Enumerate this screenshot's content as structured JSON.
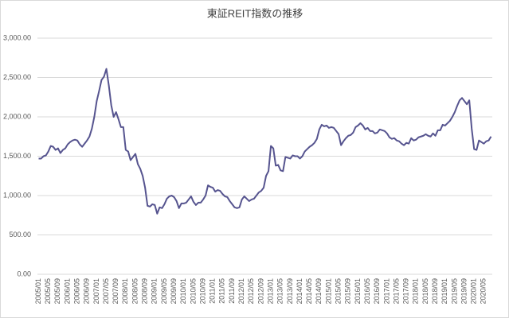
{
  "chart_data": {
    "type": "line",
    "title": "東証REIT指数の推移",
    "categories": [
      "2005/01",
      null,
      null,
      null,
      "2005/05",
      null,
      null,
      null,
      "2005/09",
      null,
      null,
      null,
      "2006/01",
      null,
      null,
      null,
      "2006/05",
      null,
      null,
      null,
      "2006/09",
      null,
      null,
      null,
      "2007/01",
      null,
      null,
      null,
      "2007/05",
      null,
      null,
      null,
      "2007/09",
      null,
      null,
      null,
      "2008/01",
      null,
      null,
      null,
      "2008/05",
      null,
      null,
      null,
      "2008/09",
      null,
      null,
      null,
      "2009/01",
      null,
      null,
      null,
      "2009/05",
      null,
      null,
      null,
      "2009/09",
      null,
      null,
      null,
      "2010/01",
      null,
      null,
      null,
      "2010/05",
      null,
      null,
      null,
      "2010/09",
      null,
      null,
      null,
      "2011/01",
      null,
      null,
      null,
      "2011/05",
      null,
      null,
      null,
      "2011/09",
      null,
      null,
      null,
      "2012/01",
      null,
      null,
      null,
      "2012/05",
      null,
      null,
      null,
      "2012/09",
      null,
      null,
      null,
      "2013/01",
      null,
      null,
      null,
      "2013/05",
      null,
      null,
      null,
      "2013/09",
      null,
      null,
      null,
      "2014/01",
      null,
      null,
      null,
      "2014/05",
      null,
      null,
      null,
      "2014/09",
      null,
      null,
      null,
      "2015/01",
      null,
      null,
      null,
      "2015/05",
      null,
      null,
      null,
      "2015/09",
      null,
      null,
      null,
      "2016/01",
      null,
      null,
      null,
      "2016/05",
      null,
      null,
      null,
      "2016/09",
      null,
      null,
      null,
      "2017/01",
      null,
      null,
      null,
      "2017/05",
      null,
      null,
      null,
      "2017/09",
      null,
      null,
      null,
      "2018/01",
      null,
      null,
      null,
      "2018/05",
      null,
      null,
      null,
      "2018/09",
      null,
      null,
      null,
      "2019/01",
      null,
      null,
      null,
      "2019/05",
      null,
      null,
      null,
      "2019/09",
      null,
      null,
      null,
      "2020/01",
      null,
      null,
      null,
      "2020/05",
      null,
      null,
      null
    ],
    "values": [
      1470,
      1470,
      1500,
      1510,
      1560,
      1630,
      1620,
      1580,
      1600,
      1540,
      1580,
      1600,
      1650,
      1680,
      1700,
      1710,
      1700,
      1650,
      1620,
      1660,
      1700,
      1750,
      1850,
      2000,
      2200,
      2330,
      2470,
      2510,
      2610,
      2400,
      2150,
      2000,
      2060,
      1970,
      1870,
      1870,
      1580,
      1560,
      1450,
      1490,
      1530,
      1400,
      1340,
      1250,
      1100,
      870,
      860,
      890,
      880,
      770,
      850,
      840,
      890,
      960,
      990,
      1000,
      980,
      930,
      840,
      900,
      900,
      910,
      950,
      990,
      920,
      880,
      910,
      910,
      950,
      1000,
      1130,
      1110,
      1100,
      1050,
      1070,
      1060,
      1020,
      990,
      980,
      930,
      890,
      850,
      840,
      850,
      950,
      990,
      960,
      930,
      950,
      960,
      1000,
      1040,
      1060,
      1100,
      1250,
      1310,
      1630,
      1600,
      1380,
      1390,
      1320,
      1310,
      1490,
      1480,
      1470,
      1510,
      1500,
      1500,
      1470,
      1500,
      1560,
      1590,
      1620,
      1640,
      1670,
      1720,
      1840,
      1900,
      1880,
      1890,
      1860,
      1870,
      1860,
      1820,
      1780,
      1640,
      1690,
      1730,
      1760,
      1770,
      1800,
      1870,
      1890,
      1920,
      1890,
      1840,
      1860,
      1820,
      1820,
      1790,
      1800,
      1840,
      1830,
      1820,
      1790,
      1740,
      1720,
      1730,
      1700,
      1690,
      1660,
      1640,
      1670,
      1660,
      1730,
      1700,
      1710,
      1740,
      1750,
      1760,
      1780,
      1760,
      1750,
      1790,
      1760,
      1830,
      1830,
      1900,
      1890,
      1920,
      1950,
      2000,
      2060,
      2140,
      2210,
      2240,
      2200,
      2160,
      2210,
      1850,
      1590,
      1580,
      1700,
      1680,
      1660,
      1690,
      1700,
      1750
    ],
    "color": "#56548f",
    "ylim": [
      0,
      3000
    ],
    "yticks": [
      {
        "value": 0,
        "label": "0.00"
      },
      {
        "value": 500,
        "label": "500.00"
      },
      {
        "value": 1000,
        "label": "1,000.00"
      },
      {
        "value": 1500,
        "label": "1,500.00"
      },
      {
        "value": 2000,
        "label": "2,000.00"
      },
      {
        "value": 2500,
        "label": "2,500.00"
      },
      {
        "value": 3000,
        "label": "3,000.00"
      }
    ],
    "grid": true
  }
}
